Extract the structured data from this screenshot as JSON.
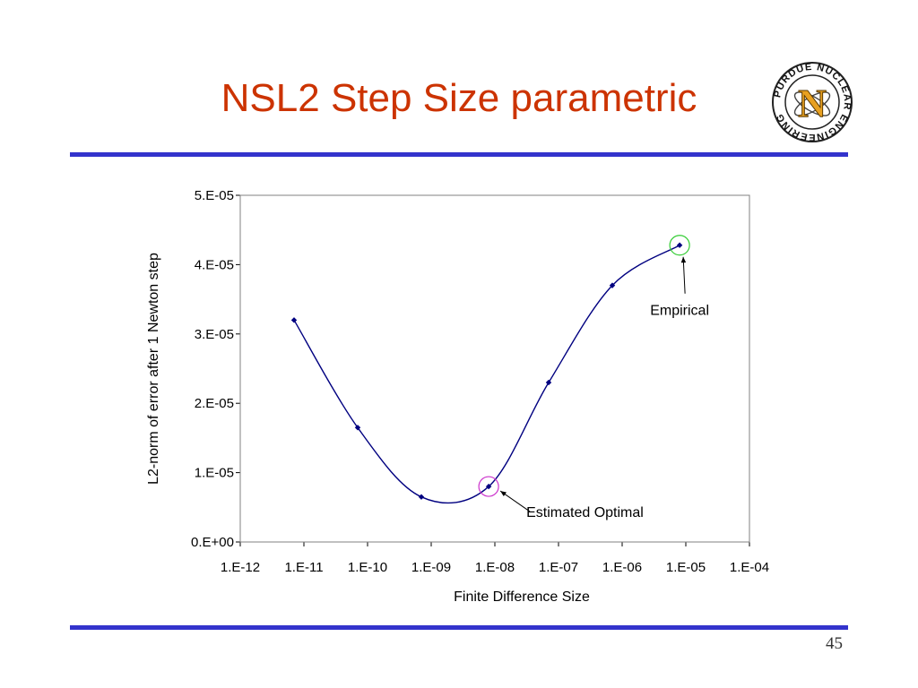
{
  "slide": {
    "title": "NSL2 Step Size parametric",
    "page_number": "45",
    "title_color": "#cc3300",
    "rule_color": "#3333cc"
  },
  "logo": {
    "icon": "purdue-nuclear-engineering-logo-icon",
    "text": "PURDUE NUCLEAR ENGINEERING",
    "letter": "N"
  },
  "chart_data": {
    "type": "line",
    "title": "",
    "xlabel": "Finite Difference Size",
    "ylabel": "L2-norm of error after 1 Newton step",
    "x_scale": "log",
    "xlim": [
      1e-12,
      0.0001
    ],
    "ylim": [
      0,
      5e-05
    ],
    "x_tick_values": [
      1e-12,
      1e-11,
      1e-10,
      1e-09,
      1e-08,
      1e-07,
      1e-06,
      1e-05,
      0.0001
    ],
    "x_tick_labels": [
      "1.E-12",
      "1.E-11",
      "1.E-10",
      "1.E-09",
      "1.E-08",
      "1.E-07",
      "1.E-06",
      "1.E-05",
      "1.E-04"
    ],
    "y_tick_values": [
      0,
      1e-05,
      2e-05,
      3e-05,
      4e-05,
      5e-05
    ],
    "y_tick_labels": [
      "0.E+00",
      "1.E-05",
      "2.E-05",
      "3.E-05",
      "4.E-05",
      "5.E-05"
    ],
    "grid": false,
    "legend": "none",
    "series": [
      {
        "color": "#000080",
        "smoothed": true,
        "x": [
          7e-12,
          7e-11,
          7e-10,
          8e-09,
          7e-08,
          7e-07,
          8e-06
        ],
        "y": [
          3.2e-05,
          1.65e-05,
          6.5e-06,
          8e-06,
          2.3e-05,
          3.7e-05,
          4.28e-05
        ]
      }
    ],
    "annotations": [
      {
        "text": "Empirical",
        "x": 8e-06,
        "y": 4.28e-05,
        "circle_color": "#33cc33"
      },
      {
        "text": "Estimated Optimal",
        "x": 8e-09,
        "y": 8e-06,
        "circle_color": "#cc33cc"
      }
    ]
  }
}
